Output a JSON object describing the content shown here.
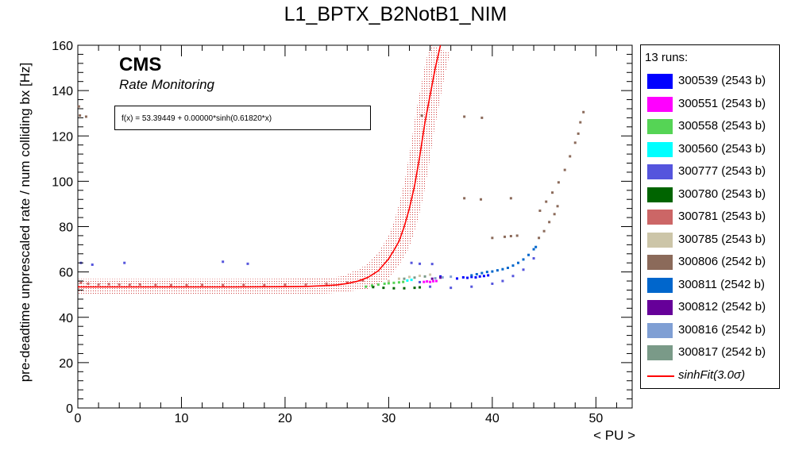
{
  "title": "L1_BPTX_B2NotB1_NIM",
  "cms_label": "CMS",
  "cms_sublabel": "Rate Monitoring",
  "fit_label": "f(x) = 53.39449 + 0.00000*sinh(0.61820*x)",
  "legend": {
    "header": "13 runs:",
    "fit_entry": "sinhFit(3.0σ)"
  },
  "chart_data": {
    "type": "scatter",
    "title": "L1_BPTX_B2NotB1_NIM",
    "xlabel": "< PU >",
    "ylabel": "pre-deadtime unprescaled rate / num colliding bx [Hz]",
    "xlim": [
      0,
      53.5
    ],
    "ylim": [
      0,
      160
    ],
    "x_ticks": [
      0,
      10,
      20,
      30,
      40,
      50
    ],
    "y_ticks": [
      0,
      20,
      40,
      60,
      80,
      100,
      120,
      140,
      160
    ],
    "legend_position": "right",
    "grid": false,
    "fit": {
      "name": "sinhFit(3.0σ)",
      "color": "#ff0000",
      "constant": 53.39449,
      "coefficient": 0.0,
      "slope": 0.6182,
      "x": [
        0,
        5,
        10,
        15,
        20,
        22,
        24,
        25,
        26,
        27,
        28,
        29,
        30,
        30.5,
        31,
        31.5,
        32,
        32.5,
        33,
        33.5,
        34,
        34.5,
        35
      ],
      "y": [
        53.4,
        53.4,
        53.4,
        53.4,
        53.5,
        53.6,
        54.0,
        54.3,
        54.9,
        55.9,
        57.6,
        60.5,
        65.8,
        69.5,
        73.5,
        80,
        88,
        98,
        111,
        126,
        138,
        150,
        160
      ],
      "band_sigma": 3.0
    },
    "series": [
      {
        "name": "300539 (2543 b)",
        "color": "#0000ff",
        "points": [
          [
            35.0,
            58.0
          ],
          [
            36.6,
            57.1
          ],
          [
            37.2,
            57.6
          ],
          [
            37.6,
            57.4
          ],
          [
            38.0,
            57.8
          ],
          [
            38.4,
            57.6
          ],
          [
            38.8,
            58.0
          ],
          [
            39.2,
            58.2
          ],
          [
            39.6,
            58.5
          ]
        ]
      },
      {
        "name": "300551 (2543 b)",
        "color": "#ff00ff",
        "points": [
          [
            33.4,
            55.6
          ],
          [
            33.7,
            55.8
          ],
          [
            34.0,
            55.6
          ],
          [
            34.3,
            55.9
          ],
          [
            34.6,
            56.0
          ]
        ]
      },
      {
        "name": "300558 (2543 b)",
        "color": "#55d455",
        "points": [
          [
            27.8,
            53.5
          ],
          [
            28.4,
            54.0
          ],
          [
            29.0,
            54.4
          ],
          [
            29.6,
            54.8
          ],
          [
            30.0,
            55.0
          ],
          [
            30.5,
            55.2
          ],
          [
            31.0,
            55.4
          ],
          [
            31.4,
            55.6
          ]
        ]
      },
      {
        "name": "300560 (2543 b)",
        "color": "#00ffff",
        "points": [
          [
            31.8,
            56.2
          ],
          [
            32.2,
            56.5
          ]
        ]
      },
      {
        "name": "300777 (2543 b)",
        "color": "#5555dd",
        "points": [
          [
            0.3,
            64.0
          ],
          [
            1.4,
            63.2
          ],
          [
            4.5,
            64.0
          ],
          [
            14.0,
            64.5
          ],
          [
            16.4,
            63.6
          ],
          [
            32.2,
            64.0
          ],
          [
            33.0,
            63.6
          ],
          [
            34.2,
            63.5
          ],
          [
            33.0,
            55.5
          ],
          [
            34.0,
            53.5
          ],
          [
            36.0,
            53.0
          ],
          [
            38.0,
            53.5
          ],
          [
            40.0,
            54.8
          ],
          [
            41.0,
            56.0
          ],
          [
            42.0,
            58.2
          ],
          [
            43.0,
            61.0
          ],
          [
            44.0,
            66.0
          ]
        ]
      },
      {
        "name": "300780 (2543 b)",
        "color": "#006400",
        "points": [
          [
            28.5,
            53.3
          ],
          [
            29.5,
            53.0
          ],
          [
            30.5,
            52.8
          ],
          [
            31.5,
            52.8
          ],
          [
            32.5,
            53.0
          ],
          [
            33.0,
            53.2
          ]
        ]
      },
      {
        "name": "300781 (2543 b)",
        "color": "#cc6666",
        "points": [
          [
            0.3,
            55.2
          ],
          [
            1.0,
            54.8
          ],
          [
            2.0,
            54.5
          ],
          [
            3.0,
            54.6
          ],
          [
            4.0,
            54.5
          ],
          [
            5.0,
            54.4
          ],
          [
            6.0,
            54.5
          ],
          [
            7.5,
            54.3
          ],
          [
            9.0,
            54.2
          ],
          [
            10.5,
            54.2
          ],
          [
            12.0,
            54.3
          ],
          [
            14.0,
            54.2
          ],
          [
            16.0,
            54.3
          ],
          [
            18.0,
            54.2
          ],
          [
            20.0,
            54.4
          ],
          [
            22.0,
            54.5
          ],
          [
            24.0,
            54.8
          ],
          [
            26.0,
            55.3
          ],
          [
            27.5,
            56.2
          ]
        ]
      },
      {
        "name": "300785 (2543 b)",
        "color": "#ccc5a8",
        "points": [
          [
            30.0,
            56.0
          ],
          [
            31.0,
            57.0
          ],
          [
            32.0,
            57.8
          ],
          [
            33.0,
            58.3
          ],
          [
            34.0,
            58.8
          ]
        ]
      },
      {
        "name": "300806 (2542 b)",
        "color": "#8b6a5a",
        "points": [
          [
            0.1,
            133.0
          ],
          [
            0.2,
            129.0
          ],
          [
            0.8,
            128.5
          ],
          [
            33.2,
            129.0
          ],
          [
            37.3,
            128.5
          ],
          [
            39.0,
            128.0
          ],
          [
            37.3,
            92.5
          ],
          [
            38.9,
            92.0
          ],
          [
            41.8,
            92.5
          ],
          [
            40.0,
            75.0
          ],
          [
            41.2,
            75.5
          ],
          [
            41.8,
            75.8
          ],
          [
            42.4,
            76.0
          ],
          [
            44.5,
            75.0
          ],
          [
            45.0,
            78.0
          ],
          [
            45.5,
            82.0
          ],
          [
            46.0,
            85.5
          ],
          [
            46.3,
            89.0
          ],
          [
            44.6,
            87.0
          ],
          [
            45.2,
            91.0
          ],
          [
            45.8,
            95.0
          ],
          [
            46.4,
            99.5
          ],
          [
            47.0,
            105.0
          ],
          [
            47.5,
            111.0
          ],
          [
            48.0,
            117.0
          ],
          [
            48.3,
            121.0
          ],
          [
            48.5,
            126.0
          ],
          [
            48.8,
            130.5
          ]
        ]
      },
      {
        "name": "300811 (2542 b)",
        "color": "#0066cc",
        "points": [
          [
            38.0,
            58.5
          ],
          [
            38.5,
            59.0
          ],
          [
            39.0,
            59.5
          ],
          [
            39.5,
            60.0
          ],
          [
            40.0,
            60.2
          ],
          [
            40.5,
            60.7
          ],
          [
            41.0,
            61.2
          ],
          [
            41.5,
            61.8
          ],
          [
            42.0,
            62.8
          ],
          [
            42.5,
            64.0
          ],
          [
            43.0,
            65.5
          ],
          [
            43.5,
            67.5
          ],
          [
            44.0,
            70.0
          ],
          [
            44.2,
            71.0
          ]
        ]
      },
      {
        "name": "300812 (2542 b)",
        "color": "#660099",
        "points": [
          [
            34.2,
            57.0
          ],
          [
            35.0,
            57.5
          ]
        ]
      },
      {
        "name": "300816 (2542 b)",
        "color": "#7f9fd4",
        "points": [
          [
            34.5,
            57.2
          ],
          [
            35.2,
            57.6
          ],
          [
            36.0,
            57.9
          ]
        ]
      },
      {
        "name": "300817 (2542 b)",
        "color": "#7a9a88",
        "points": [
          [
            31.5,
            57.0
          ],
          [
            32.5,
            57.5
          ],
          [
            33.5,
            58.0
          ]
        ]
      }
    ]
  }
}
